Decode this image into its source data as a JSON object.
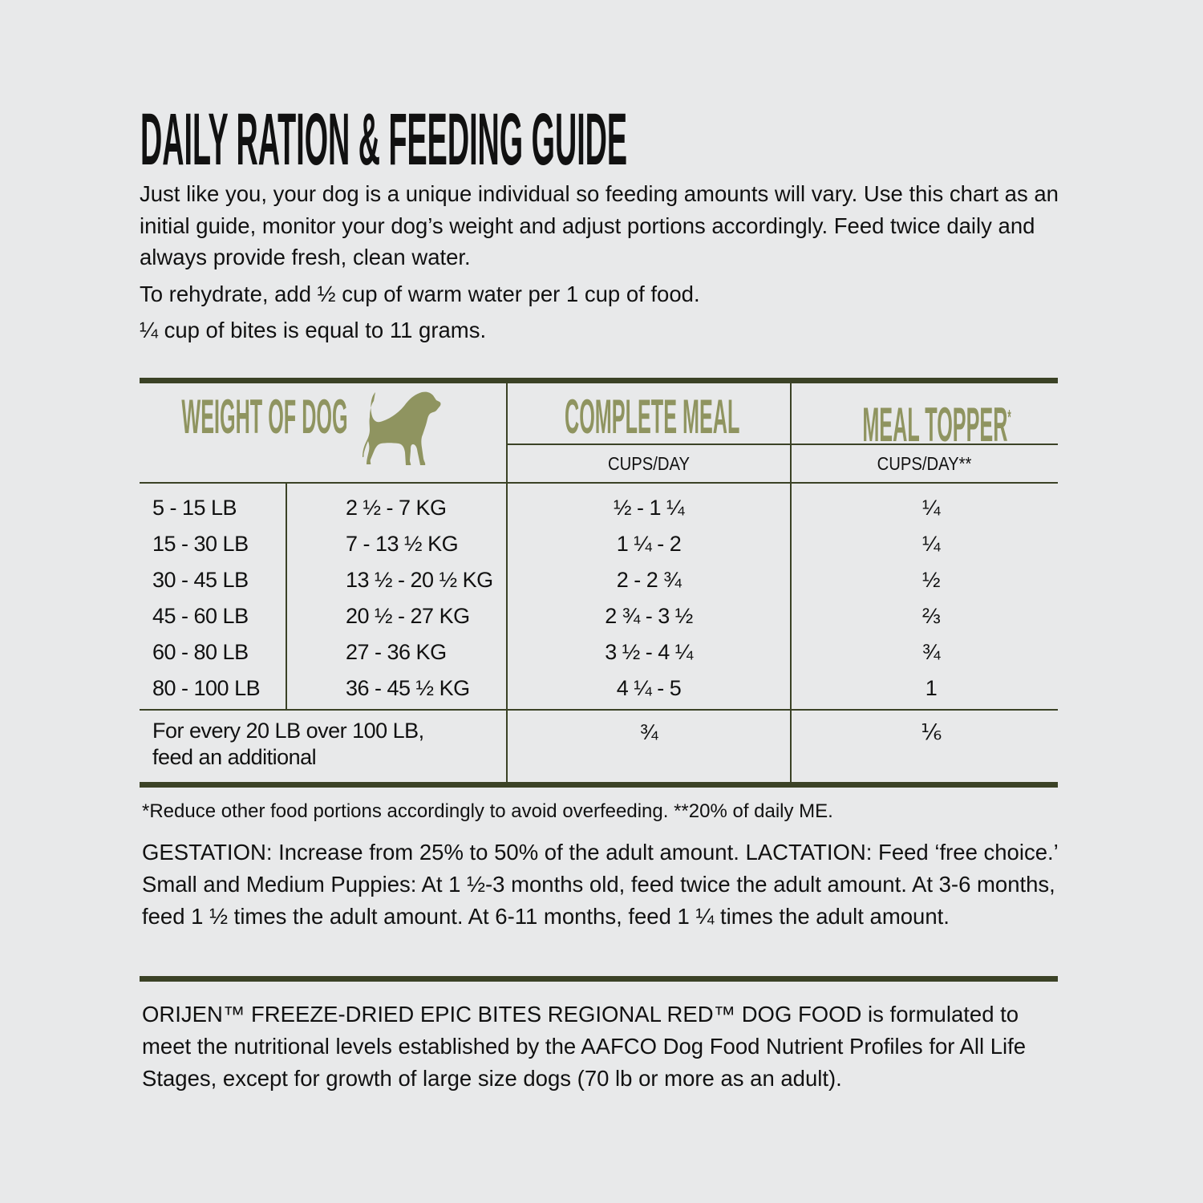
{
  "title": "DAILY RATION & FEEDING GUIDE",
  "intro": {
    "lines": [
      "Just like you, your dog is a unique individual so feeding amounts will vary. Use this chart as an initial guide, monitor your dog’s weight and adjust portions accordingly. Feed twice daily and always provide fresh, clean water.",
      "To rehydrate, add ½ cup of warm water per 1 cup of food.",
      "¼ cup of bites is equal to 11 grams."
    ]
  },
  "colors": {
    "accent": "#8f9460",
    "rule": "#3b4226",
    "background": "#e8e9ea"
  },
  "table": {
    "headers": {
      "weight": "WEIGHT OF DOG",
      "weight_icon": "dog-silhouette-icon",
      "complete_meal": "COMPLETE MEAL",
      "meal_topper": "MEAL TOPPER",
      "meal_topper_mark": "*",
      "complete_meal_unit": "CUPS/DAY",
      "meal_topper_unit": "CUPS/DAY**"
    },
    "rows": [
      {
        "lb": "5 - 15 LB",
        "kg": "2 ½ - 7 KG",
        "complete": "½ - 1 ¼",
        "topper": "¼"
      },
      {
        "lb": "15 - 30 LB",
        "kg": "7 - 13 ½ KG",
        "complete": "1 ¼ - 2",
        "topper": "¼"
      },
      {
        "lb": "30 - 45 LB",
        "kg": "13 ½ - 20 ½ KG",
        "complete": "2 - 2 ¾",
        "topper": "½"
      },
      {
        "lb": "45 - 60 LB",
        "kg": "20 ½ - 27 KG",
        "complete": "2 ¾ - 3 ½",
        "topper": "⅔"
      },
      {
        "lb": "60 - 80 LB",
        "kg": "27 - 36 KG",
        "complete": "3 ½ - 4 ¼",
        "topper": "¾"
      },
      {
        "lb": "80 - 100 LB",
        "kg": "36 - 45 ½ KG",
        "complete": "4 ¼ - 5",
        "topper": "1"
      }
    ],
    "extra": {
      "label_line1": "For every 20 LB over 100 LB,",
      "label_line2": "feed an additional",
      "complete": "¾",
      "topper": "⅙"
    }
  },
  "footnote": "*Reduce other food portions accordingly to avoid overfeeding. **20% of daily ME.",
  "gestation": "GESTATION: Increase from 25% to 50% of the adult amount. LACTATION: Feed ‘free choice.’ Small and Medium Puppies: At 1 ½-3 months old, feed twice the adult amount. At 3-6 months, feed 1 ½ times the adult amount. At 6-11 months, feed 1 ¼ times the adult amount.",
  "aafco": "ORIJEN™ FREEZE-DRIED EPIC BITES REGIONAL RED™ DOG FOOD is formulated to meet the nutritional levels established by the AAFCO Dog Food Nutrient Profiles for All Life Stages, except for growth of large size dogs (70 lb or more as an adult)."
}
